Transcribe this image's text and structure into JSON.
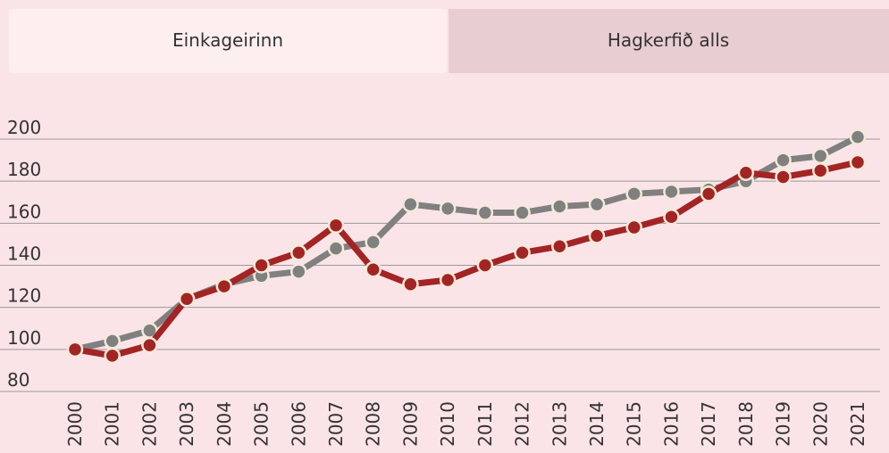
{
  "tabs": [
    "Einkageirinn",
    "Hagkerfið alls"
  ],
  "chart_data": {
    "type": "line",
    "categories": [
      "2000",
      "2001",
      "2002",
      "2003",
      "2004",
      "2005",
      "2006",
      "2007",
      "2008",
      "2009",
      "2010",
      "2011",
      "2012",
      "2013",
      "2014",
      "2015",
      "2016",
      "2017",
      "2018",
      "2019",
      "2020",
      "2021"
    ],
    "series": [
      {
        "color": "#808080",
        "values": [
          100,
          104,
          109,
          124,
          131,
          135,
          137,
          148,
          151,
          169,
          167,
          165,
          165,
          168,
          169,
          174,
          175,
          176,
          180,
          190,
          192,
          201
        ]
      },
      {
        "color": "#a32424",
        "values": [
          100,
          97,
          102,
          124,
          130,
          140,
          146,
          159,
          138,
          131,
          133,
          140,
          146,
          149,
          154,
          158,
          163,
          174,
          184,
          182,
          185,
          189
        ]
      }
    ],
    "ylim": [
      80,
      200
    ],
    "yticks": [
      80,
      100,
      120,
      140,
      160,
      180,
      200
    ],
    "grid": true
  }
}
